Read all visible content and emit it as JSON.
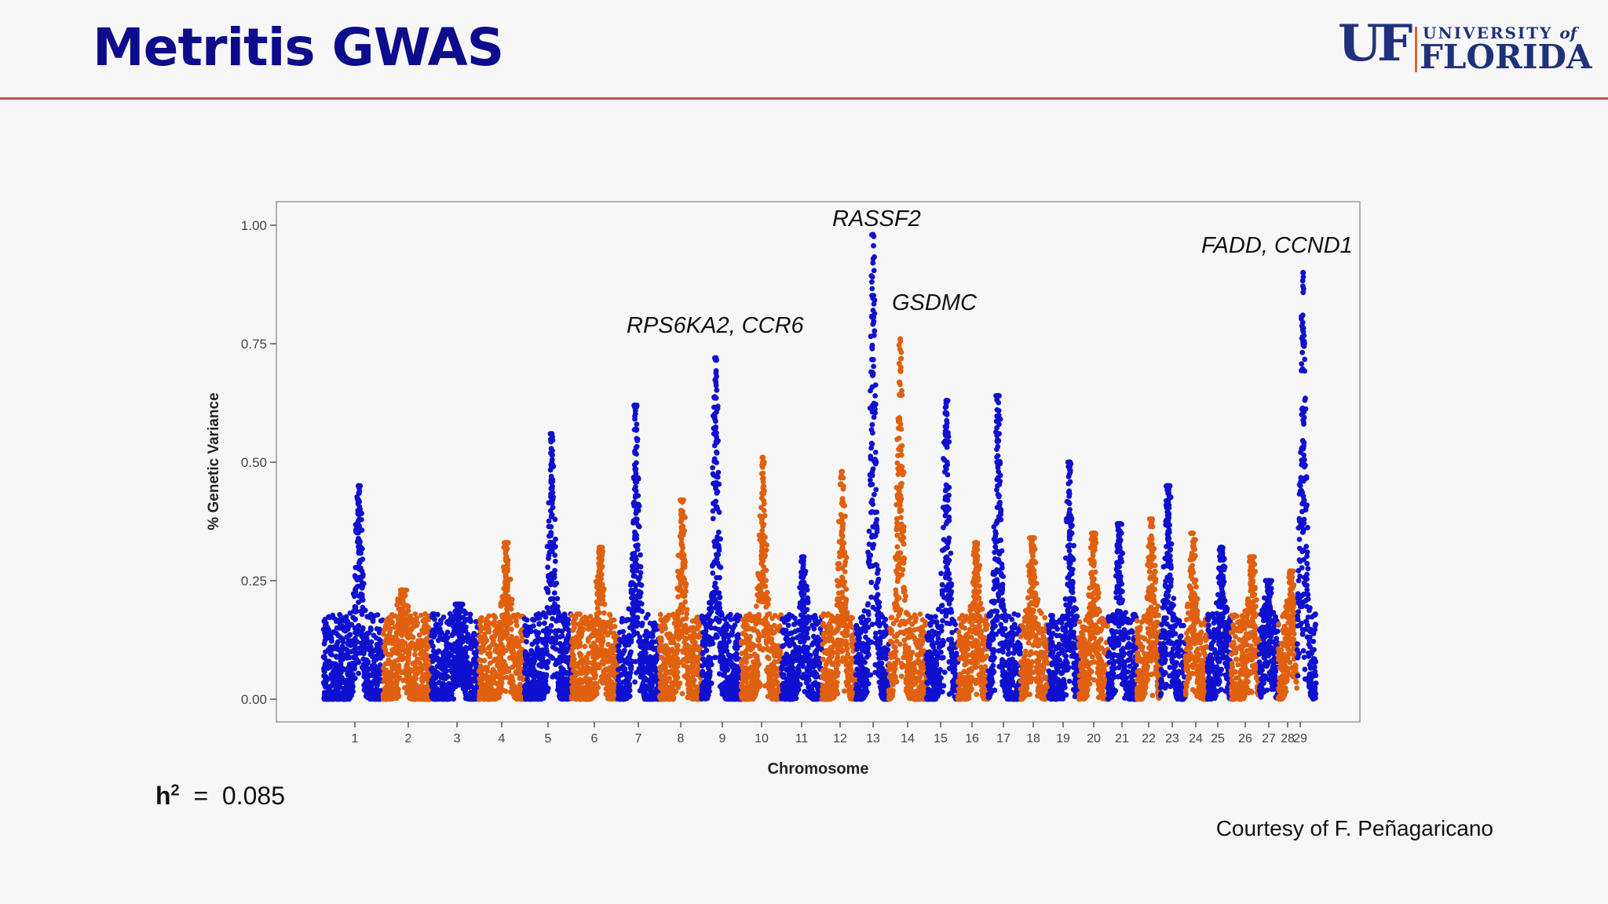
{
  "slide": {
    "title": "Metritis GWAS",
    "logo_mark": "UF",
    "logo_university": "UNIVERSITY",
    "logo_of": "of",
    "logo_florida": "FLORIDA",
    "heritability_symbol": "h",
    "heritability_exponent": "2",
    "heritability_equals": "=",
    "heritability_value": "0.085",
    "credit": "Courtesy of F. Peñagaricano"
  },
  "colors": {
    "title": "#0c0c8c",
    "rule": "#c0504d",
    "logo": "#20317b",
    "series_blue": "#1010d0",
    "series_orange": "#e0600f"
  },
  "chart_data": {
    "type": "scatter",
    "subtype": "manhattan",
    "xlabel": "Chromosome",
    "ylabel": "% Genetic Variance",
    "ylim": [
      0,
      1.05
    ],
    "y_ticks": [
      "0.00",
      "0.25",
      "0.50",
      "0.75",
      "1.00"
    ],
    "grid": false,
    "legend": "none",
    "chromosomes": [
      {
        "label": "1",
        "peak": 0.45,
        "color": "blue"
      },
      {
        "label": "2",
        "peak": 0.23,
        "color": "orange"
      },
      {
        "label": "3",
        "peak": 0.2,
        "color": "blue"
      },
      {
        "label": "4",
        "peak": 0.33,
        "color": "orange"
      },
      {
        "label": "5",
        "peak": 0.56,
        "color": "blue"
      },
      {
        "label": "6",
        "peak": 0.32,
        "color": "orange"
      },
      {
        "label": "7",
        "peak": 0.62,
        "color": "blue"
      },
      {
        "label": "8",
        "peak": 0.42,
        "color": "orange"
      },
      {
        "label": "9",
        "peak": 0.72,
        "color": "blue"
      },
      {
        "label": "10",
        "peak": 0.51,
        "color": "orange"
      },
      {
        "label": "11",
        "peak": 0.3,
        "color": "blue"
      },
      {
        "label": "12",
        "peak": 0.48,
        "color": "orange"
      },
      {
        "label": "13",
        "peak": 0.98,
        "color": "blue"
      },
      {
        "label": "14",
        "peak": 0.76,
        "color": "orange"
      },
      {
        "label": "15",
        "peak": 0.63,
        "color": "blue"
      },
      {
        "label": "16",
        "peak": 0.33,
        "color": "orange"
      },
      {
        "label": "17",
        "peak": 0.64,
        "color": "blue"
      },
      {
        "label": "18",
        "peak": 0.34,
        "color": "orange"
      },
      {
        "label": "19",
        "peak": 0.5,
        "color": "blue"
      },
      {
        "label": "20",
        "peak": 0.35,
        "color": "orange"
      },
      {
        "label": "21",
        "peak": 0.37,
        "color": "blue"
      },
      {
        "label": "22",
        "peak": 0.38,
        "color": "orange"
      },
      {
        "label": "23",
        "peak": 0.45,
        "color": "blue"
      },
      {
        "label": "24",
        "peak": 0.35,
        "color": "orange"
      },
      {
        "label": "25",
        "peak": 0.32,
        "color": "blue"
      },
      {
        "label": "26",
        "peak": 0.3,
        "color": "orange"
      },
      {
        "label": "27",
        "peak": 0.25,
        "color": "blue"
      },
      {
        "label": "28",
        "peak": 0.27,
        "color": "orange"
      },
      {
        "label": "29",
        "peak": 0.9,
        "color": "blue"
      }
    ],
    "annotations": [
      {
        "text": "RASSF2",
        "chromosome": "13",
        "y": 0.98
      },
      {
        "text": "GSDMC",
        "chromosome": "14",
        "y": 0.76
      },
      {
        "text": "RPS6KA2, CCR6",
        "chromosome": "9",
        "y": 0.72
      },
      {
        "text": "FADD, CCND1",
        "chromosome": "29",
        "y": 0.9
      }
    ]
  }
}
